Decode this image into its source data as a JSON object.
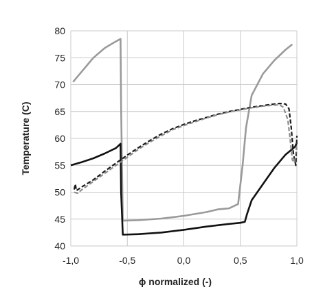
{
  "chart_data": {
    "type": "line",
    "title": "",
    "xlabel": "ϕ normalized (-)",
    "ylabel": "Temperature (C)",
    "xlim": [
      -1.0,
      1.0
    ],
    "ylim": [
      40,
      80
    ],
    "x_ticks": [
      -1.0,
      -0.5,
      0.0,
      0.5,
      1.0
    ],
    "x_tick_labels": [
      "-1,0",
      "-0,5",
      "0,0",
      "0,5",
      "1,0"
    ],
    "y_ticks": [
      40,
      45,
      50,
      55,
      60,
      65,
      70,
      75,
      80
    ],
    "y_tick_labels": [
      "40",
      "45",
      "50",
      "55",
      "60",
      "65",
      "70",
      "75",
      "80"
    ],
    "grid": true,
    "legend": "none",
    "series": [
      {
        "color": "#9a9a9a",
        "dash": "solid",
        "x": [
          -0.98,
          -0.9,
          -0.8,
          -0.7,
          -0.62,
          -0.56,
          -0.555,
          -0.54,
          -0.4,
          -0.2,
          0.0,
          0.2,
          0.3,
          0.4,
          0.48,
          0.52,
          0.55,
          0.6,
          0.7,
          0.8,
          0.9,
          0.96
        ],
        "y": [
          70.5,
          72.5,
          75.0,
          76.8,
          77.8,
          78.5,
          66.0,
          44.7,
          44.8,
          45.1,
          45.6,
          46.3,
          46.8,
          47.0,
          47.8,
          55.0,
          62.0,
          68.0,
          72.0,
          74.5,
          76.5,
          77.5
        ]
      },
      {
        "color": "#111111",
        "dash": "solid",
        "x": [
          -1.0,
          -0.9,
          -0.8,
          -0.7,
          -0.6,
          -0.56,
          -0.555,
          -0.54,
          -0.4,
          -0.2,
          0.0,
          0.2,
          0.4,
          0.5,
          0.54,
          0.56,
          0.6,
          0.7,
          0.8,
          0.9,
          0.97,
          0.985,
          1.0,
          1.0
        ],
        "y": [
          55.0,
          55.6,
          56.3,
          57.2,
          58.2,
          59.0,
          50.0,
          42.1,
          42.2,
          42.5,
          43.0,
          43.6,
          44.1,
          44.3,
          44.5,
          46.0,
          48.5,
          51.5,
          54.5,
          57.0,
          58.2,
          58.5,
          59.2,
          59.2
        ]
      },
      {
        "color": "#1a1a1a",
        "dash": "dashed",
        "x": [
          -0.97,
          -0.96,
          -0.95,
          -0.9,
          -0.8,
          -0.7,
          -0.6,
          -0.5,
          -0.4,
          -0.3,
          -0.2,
          -0.1,
          0.0,
          0.1,
          0.2,
          0.3,
          0.4,
          0.5,
          0.6,
          0.7,
          0.8,
          0.85,
          0.9,
          0.93,
          0.95,
          0.97,
          0.99,
          1.0
        ],
        "y": [
          50.5,
          51.5,
          50.3,
          51.0,
          52.3,
          53.9,
          55.4,
          56.9,
          58.3,
          59.6,
          60.8,
          61.8,
          62.6,
          63.3,
          63.9,
          64.5,
          65.0,
          65.4,
          65.8,
          66.1,
          66.4,
          66.5,
          66.4,
          65.5,
          62.0,
          57.0,
          55.0,
          60.5
        ]
      },
      {
        "color": "#8c8c8c",
        "dash": "dashed",
        "x": [
          -0.97,
          -0.94,
          -0.9,
          -0.8,
          -0.7,
          -0.6,
          -0.5,
          -0.4,
          -0.3,
          -0.2,
          -0.1,
          0.0,
          0.1,
          0.2,
          0.3,
          0.4,
          0.5,
          0.6,
          0.7,
          0.8,
          0.85,
          0.88,
          0.92,
          0.94,
          0.96,
          0.98,
          1.0
        ],
        "y": [
          50.0,
          49.8,
          50.5,
          52.0,
          53.5,
          55.0,
          56.5,
          58.0,
          59.3,
          60.5,
          61.6,
          62.4,
          63.1,
          63.8,
          64.4,
          64.9,
          65.3,
          65.7,
          66.0,
          66.2,
          66.2,
          65.8,
          63.5,
          60.0,
          56.0,
          55.5,
          59.0
        ]
      }
    ]
  }
}
